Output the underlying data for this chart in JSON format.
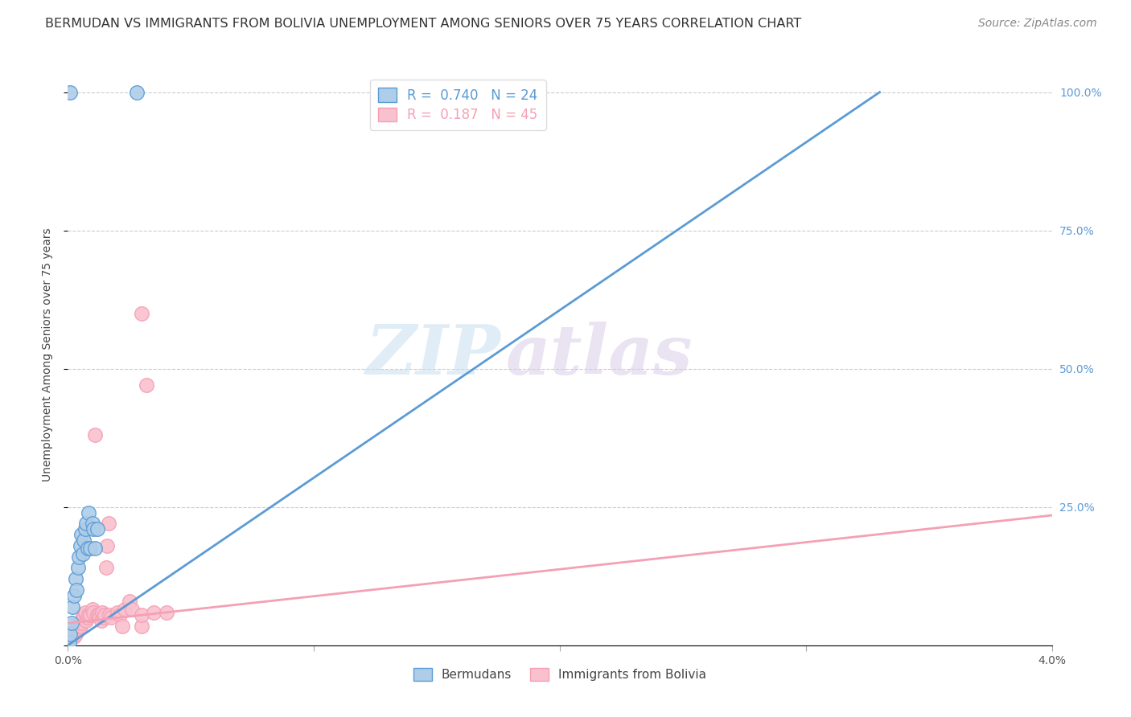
{
  "title": "BERMUDAN VS IMMIGRANTS FROM BOLIVIA UNEMPLOYMENT AMONG SENIORS OVER 75 YEARS CORRELATION CHART",
  "source": "Source: ZipAtlas.com",
  "ylabel": "Unemployment Among Seniors over 75 years",
  "xmin": 0.0,
  "xmax": 0.04,
  "ymin": 0.0,
  "ymax": 1.05,
  "yticks": [
    0.0,
    0.25,
    0.5,
    0.75,
    1.0
  ],
  "ytick_labels": [
    "",
    "25.0%",
    "50.0%",
    "75.0%",
    "100.0%"
  ],
  "xticks": [
    0.0,
    0.01,
    0.02,
    0.03,
    0.04
  ],
  "xtick_labels_show": [
    "0.0%",
    "",
    "",
    "",
    "4.0%"
  ],
  "background_color": "#ffffff",
  "watermark_zip": "ZIP",
  "watermark_atlas": "atlas",
  "legend_entries": [
    {
      "label": "Bermudans",
      "R": "0.740",
      "N": "24",
      "color": "#5b9bd5"
    },
    {
      "label": "Immigrants from Bolivia",
      "R": "0.187",
      "N": "45",
      "color": "#f4a0b5"
    }
  ],
  "blue_scatter": [
    [
      5e-05,
      0.005
    ],
    [
      0.0001,
      0.02
    ],
    [
      0.00015,
      0.04
    ],
    [
      0.0002,
      0.07
    ],
    [
      0.00025,
      0.09
    ],
    [
      0.0003,
      0.12
    ],
    [
      0.00035,
      0.1
    ],
    [
      0.0004,
      0.14
    ],
    [
      0.00045,
      0.16
    ],
    [
      0.0005,
      0.18
    ],
    [
      0.00055,
      0.2
    ],
    [
      0.0006,
      0.165
    ],
    [
      0.00065,
      0.19
    ],
    [
      0.0007,
      0.21
    ],
    [
      0.00075,
      0.22
    ],
    [
      0.0008,
      0.175
    ],
    [
      0.00085,
      0.24
    ],
    [
      0.0009,
      0.175
    ],
    [
      0.001,
      0.22
    ],
    [
      0.00105,
      0.21
    ],
    [
      0.0011,
      0.175
    ],
    [
      0.0012,
      0.21
    ],
    [
      8e-05,
      1.0
    ],
    [
      0.0028,
      1.0
    ]
  ],
  "pink_scatter": [
    [
      5e-05,
      0.01
    ],
    [
      0.0001,
      0.02
    ],
    [
      0.00015,
      0.015
    ],
    [
      0.0002,
      0.025
    ],
    [
      0.00025,
      0.015
    ],
    [
      0.0003,
      0.02
    ],
    [
      0.00035,
      0.03
    ],
    [
      0.0004,
      0.035
    ],
    [
      0.00045,
      0.04
    ],
    [
      0.0005,
      0.035
    ],
    [
      0.00055,
      0.04
    ],
    [
      0.0006,
      0.055
    ],
    [
      0.00065,
      0.05
    ],
    [
      0.0007,
      0.06
    ],
    [
      0.00075,
      0.045
    ],
    [
      0.0008,
      0.05
    ],
    [
      0.00085,
      0.055
    ],
    [
      0.0009,
      0.055
    ],
    [
      0.001,
      0.065
    ],
    [
      0.00105,
      0.06
    ],
    [
      0.0011,
      0.38
    ],
    [
      0.0012,
      0.055
    ],
    [
      0.00125,
      0.055
    ],
    [
      0.0013,
      0.05
    ],
    [
      0.00135,
      0.045
    ],
    [
      0.0014,
      0.06
    ],
    [
      0.00145,
      0.05
    ],
    [
      0.0015,
      0.055
    ],
    [
      0.00155,
      0.14
    ],
    [
      0.0016,
      0.18
    ],
    [
      0.00165,
      0.22
    ],
    [
      0.0017,
      0.055
    ],
    [
      0.00175,
      0.05
    ],
    [
      0.002,
      0.06
    ],
    [
      0.0021,
      0.055
    ],
    [
      0.0022,
      0.035
    ],
    [
      0.0023,
      0.065
    ],
    [
      0.0025,
      0.08
    ],
    [
      0.0026,
      0.065
    ],
    [
      0.003,
      0.035
    ],
    [
      0.003,
      0.055
    ],
    [
      0.003,
      0.6
    ],
    [
      0.0032,
      0.47
    ],
    [
      0.0035,
      0.06
    ],
    [
      0.004,
      0.06
    ]
  ],
  "blue_line_x": [
    0.0,
    0.033
  ],
  "blue_line_y": [
    0.0,
    1.0
  ],
  "pink_line_x": [
    0.0,
    0.04
  ],
  "pink_line_y": [
    0.04,
    0.235
  ],
  "blue_line_color": "#5b9bd5",
  "pink_line_color": "#f4a0b5",
  "scatter_blue_face": "#aecde8",
  "scatter_blue_edge": "#5b9bd5",
  "scatter_pink_face": "#f9c0ce",
  "scatter_pink_edge": "#f4a0b5",
  "grid_color": "#cccccc",
  "title_fontsize": 11.5,
  "source_fontsize": 10,
  "ylabel_fontsize": 10,
  "tick_fontsize": 10,
  "legend_fontsize": 12
}
